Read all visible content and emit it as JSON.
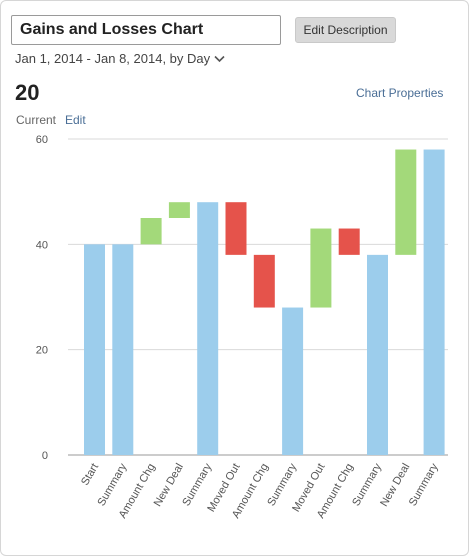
{
  "header": {
    "title": "Gains and Losses Chart",
    "edit_description_label": "Edit Description",
    "date_range": "Jan 1, 2014 - Jan 8, 2014, by Day",
    "chevron_icon": "chevron-down-icon"
  },
  "summary": {
    "value": "20",
    "current_label": "Current",
    "edit_label": "Edit",
    "chart_properties_label": "Chart Properties"
  },
  "chart_data": {
    "type": "bar",
    "subtype": "waterfall",
    "categories": [
      "Start",
      "Summary",
      "Amount Chg",
      "New Deal",
      "Summary",
      "Moved Out",
      "Amount Chg",
      "Summary",
      "Moved Out",
      "Amount Chg",
      "Summary",
      "New Deal",
      "Summary"
    ],
    "bars": [
      {
        "low": 0,
        "high": 40,
        "kind": "summary"
      },
      {
        "low": 0,
        "high": 40,
        "kind": "summary"
      },
      {
        "low": 40,
        "high": 45,
        "kind": "gain"
      },
      {
        "low": 45,
        "high": 48,
        "kind": "gain"
      },
      {
        "low": 0,
        "high": 48,
        "kind": "summary"
      },
      {
        "low": 38,
        "high": 48,
        "kind": "loss"
      },
      {
        "low": 28,
        "high": 38,
        "kind": "loss"
      },
      {
        "low": 0,
        "high": 28,
        "kind": "summary"
      },
      {
        "low": 28,
        "high": 43,
        "kind": "gain"
      },
      {
        "low": 38,
        "high": 43,
        "kind": "loss"
      },
      {
        "low": 0,
        "high": 38,
        "kind": "summary"
      },
      {
        "low": 38,
        "high": 58,
        "kind": "gain"
      },
      {
        "low": 0,
        "high": 58,
        "kind": "summary"
      }
    ],
    "yticks": [
      0,
      20,
      40,
      60
    ],
    "ylim": [
      0,
      60
    ],
    "grid": true,
    "colors": {
      "summary": "#9ccdec",
      "gain": "#a3d97a",
      "loss": "#e5534b",
      "grid": "#d9d9d9",
      "axis": "#9a9a9a"
    }
  }
}
